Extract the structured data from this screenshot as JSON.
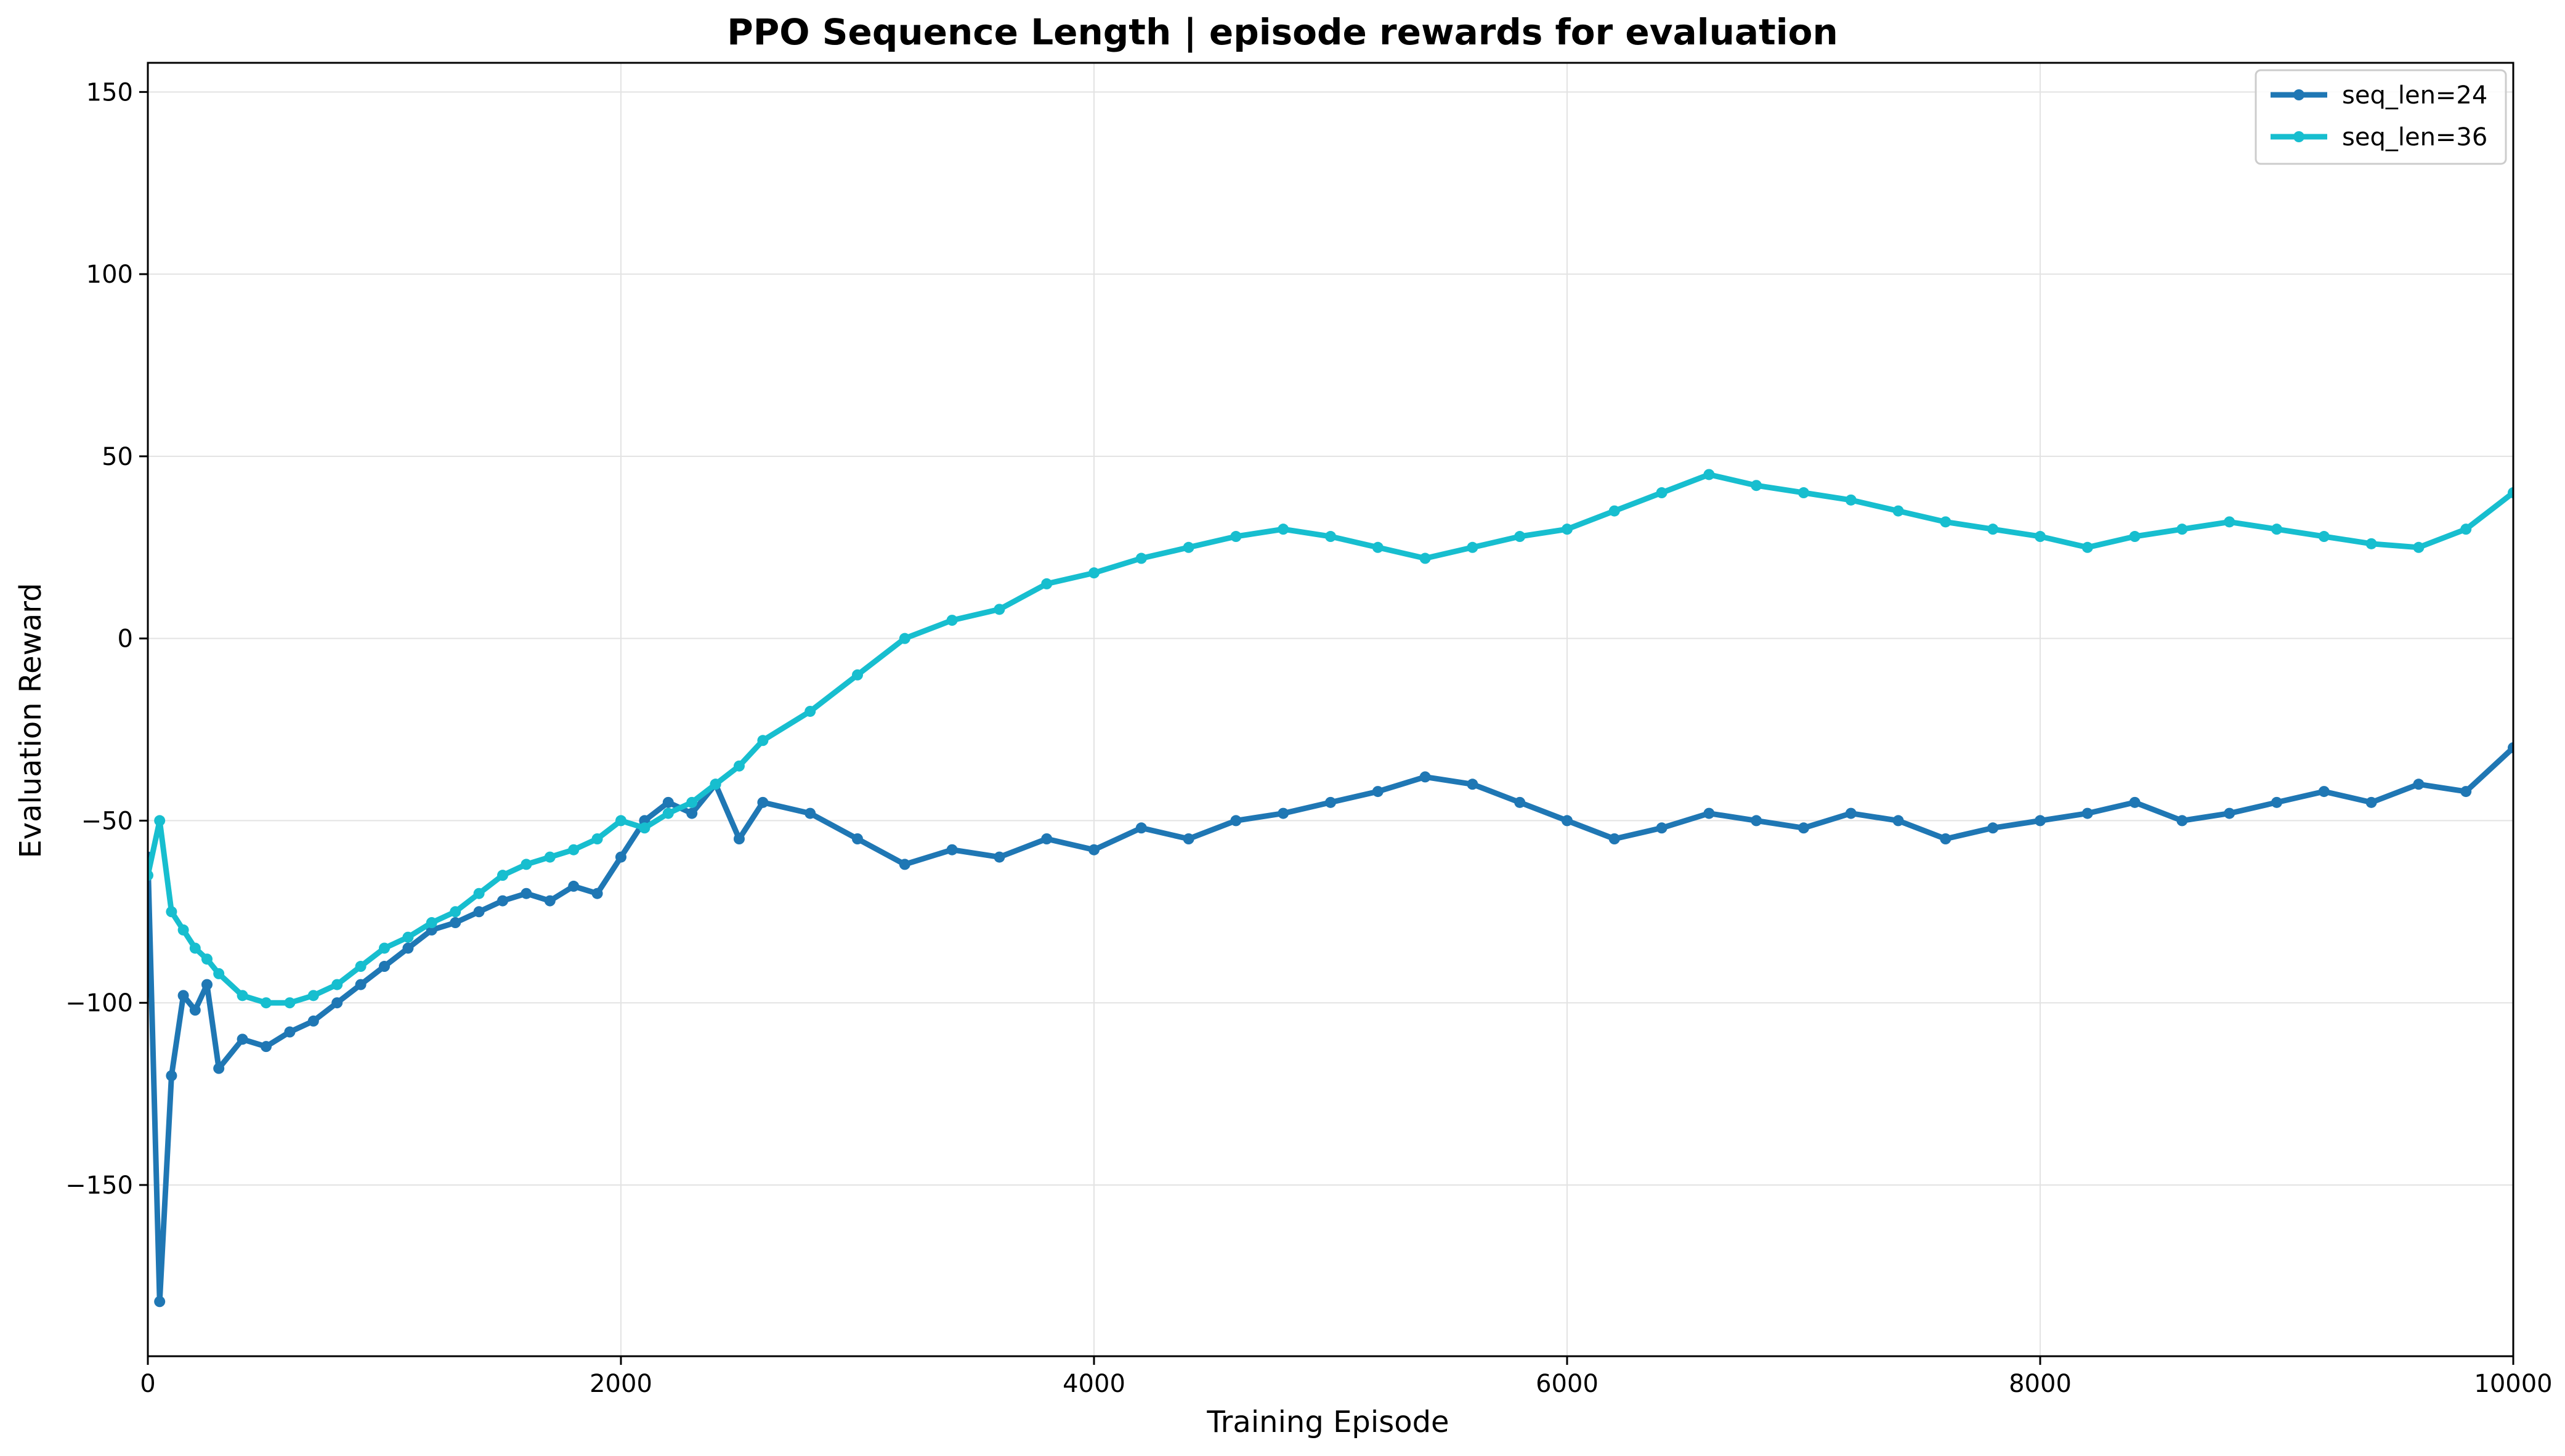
{
  "chart_data": {
    "type": "line",
    "title": "PPO Sequence Length | episode rewards for evaluation",
    "xlabel": "Training Episode",
    "ylabel": "Evaluation Reward",
    "xlim": [
      0,
      10000
    ],
    "ylim": [
      -197,
      158
    ],
    "xticks": [
      0,
      2000,
      4000,
      6000,
      8000,
      10000
    ],
    "yticks": [
      -150,
      -100,
      -50,
      0,
      50,
      100,
      150
    ],
    "grid": true,
    "legend_position": "top-right",
    "series": [
      {
        "name": "seq_len=24",
        "color": "#1f77b4",
        "x": [
          0,
          50,
          100,
          150,
          200,
          250,
          300,
          400,
          500,
          600,
          700,
          800,
          900,
          1000,
          1100,
          1200,
          1300,
          1400,
          1500,
          1600,
          1700,
          1800,
          1900,
          2000,
          2100,
          2200,
          2300,
          2400,
          2500,
          2600,
          2800,
          3000,
          3200,
          3400,
          3600,
          3800,
          4000,
          4200,
          4400,
          4600,
          4800,
          5000,
          5200,
          5400,
          5600,
          5800,
          6000,
          6200,
          6400,
          6600,
          6800,
          7000,
          7200,
          7400,
          7600,
          7800,
          8000,
          8200,
          8400,
          8600,
          8800,
          9000,
          9200,
          9400,
          9600,
          9800,
          10000
        ],
        "y": [
          -60,
          -182,
          -120,
          -98,
          -102,
          -95,
          -118,
          -110,
          -112,
          -108,
          -105,
          -100,
          -95,
          -90,
          -85,
          -80,
          -78,
          -75,
          -72,
          -70,
          -72,
          -68,
          -70,
          -60,
          -50,
          -45,
          -48,
          -40,
          -55,
          -45,
          -48,
          -55,
          -62,
          -58,
          -60,
          -55,
          -58,
          -52,
          -55,
          -50,
          -48,
          -45,
          -42,
          -38,
          -40,
          -45,
          -50,
          -55,
          -52,
          -48,
          -50,
          -52,
          -48,
          -50,
          -55,
          -52,
          -50,
          -48,
          -45,
          -50,
          -48,
          -45,
          -42,
          -45,
          -40,
          -42,
          -30
        ]
      },
      {
        "name": "seq_len=36",
        "color": "#17becf",
        "x": [
          0,
          50,
          100,
          150,
          200,
          250,
          300,
          400,
          500,
          600,
          700,
          800,
          900,
          1000,
          1100,
          1200,
          1300,
          1400,
          1500,
          1600,
          1700,
          1800,
          1900,
          2000,
          2100,
          2200,
          2300,
          2400,
          2500,
          2600,
          2800,
          3000,
          3200,
          3400,
          3600,
          3800,
          4000,
          4200,
          4400,
          4600,
          4800,
          5000,
          5200,
          5400,
          5600,
          5800,
          6000,
          6200,
          6400,
          6600,
          6800,
          7000,
          7200,
          7400,
          7600,
          7800,
          8000,
          8200,
          8400,
          8600,
          8800,
          9000,
          9200,
          9400,
          9600,
          9800,
          10000
        ],
        "y": [
          -65,
          -50,
          -75,
          -80,
          -85,
          -88,
          -92,
          -98,
          -100,
          -100,
          -98,
          -95,
          -90,
          -85,
          -82,
          -78,
          -75,
          -70,
          -65,
          -62,
          -60,
          -58,
          -55,
          -50,
          -52,
          -48,
          -45,
          -40,
          -35,
          -28,
          -20,
          -10,
          0,
          5,
          8,
          15,
          18,
          22,
          25,
          28,
          30,
          28,
          25,
          22,
          25,
          28,
          30,
          35,
          40,
          45,
          42,
          40,
          38,
          35,
          32,
          30,
          28,
          25,
          28,
          30,
          32,
          30,
          28,
          26,
          25,
          30,
          40
        ]
      }
    ]
  }
}
